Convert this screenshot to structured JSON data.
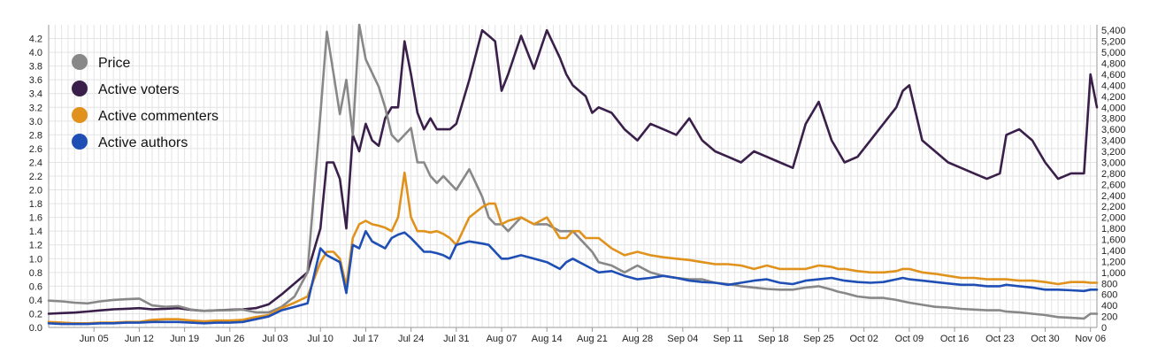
{
  "chart_data": {
    "type": "line",
    "title": "",
    "grid": true,
    "legend_position": "top-left",
    "x_dates": [
      "May 29",
      "May 31",
      "Jun 02",
      "Jun 04",
      "Jun 06",
      "Jun 08",
      "Jun 10",
      "Jun 12",
      "Jun 14",
      "Jun 16",
      "Jun 18",
      "Jun 20",
      "Jun 22",
      "Jun 24",
      "Jun 26",
      "Jun 28",
      "Jun 30",
      "Jul 02",
      "Jul 04",
      "Jul 06",
      "Jul 08",
      "Jul 10",
      "Jul 11",
      "Jul 12",
      "Jul 13",
      "Jul 14",
      "Jul 15",
      "Jul 16",
      "Jul 17",
      "Jul 18",
      "Jul 19",
      "Jul 20",
      "Jul 21",
      "Jul 22",
      "Jul 23",
      "Jul 24",
      "Jul 25",
      "Jul 26",
      "Jul 27",
      "Jul 28",
      "Jul 29",
      "Jul 30",
      "Jul 31",
      "Aug 02",
      "Aug 04",
      "Aug 05",
      "Aug 06",
      "Aug 07",
      "Aug 08",
      "Aug 10",
      "Aug 12",
      "Aug 14",
      "Aug 16",
      "Aug 17",
      "Aug 18",
      "Aug 19",
      "Aug 20",
      "Aug 21",
      "Aug 22",
      "Aug 24",
      "Aug 26",
      "Aug 28",
      "Aug 30",
      "Sep 01",
      "Sep 03",
      "Sep 05",
      "Sep 07",
      "Sep 09",
      "Sep 11",
      "Sep 13",
      "Sep 15",
      "Sep 17",
      "Sep 19",
      "Sep 21",
      "Sep 23",
      "Sep 25",
      "Sep 27",
      "Sep 28",
      "Sep 29",
      "Oct 01",
      "Oct 03",
      "Oct 05",
      "Oct 07",
      "Oct 08",
      "Oct 09",
      "Oct 11",
      "Oct 13",
      "Oct 15",
      "Oct 17",
      "Oct 19",
      "Oct 21",
      "Oct 23",
      "Oct 24",
      "Oct 26",
      "Oct 28",
      "Oct 30",
      "Nov 01",
      "Nov 03",
      "Nov 05",
      "Nov 06",
      "Nov 07"
    ],
    "x_ticks": [
      "Jun 05",
      "Jun 12",
      "Jun 19",
      "Jun 26",
      "Jul 03",
      "Jul 10",
      "Jul 17",
      "Jul 24",
      "Jul 31",
      "Aug 07",
      "Aug 14",
      "Aug 21",
      "Aug 28",
      "Sep 04",
      "Sep 11",
      "Sep 18",
      "Sep 25",
      "Oct 02",
      "Oct 09",
      "Oct 16",
      "Oct 23",
      "Oct 30",
      "Nov 06"
    ],
    "y_left": {
      "min": 0,
      "max": 4.4,
      "ticks": [
        "0.0",
        "0.2",
        "0.4",
        "0.6",
        "0.8",
        "1.0",
        "1.2",
        "1.4",
        "1.6",
        "1.8",
        "2.0",
        "2.2",
        "2.4",
        "2.6",
        "2.8",
        "3.0",
        "3.2",
        "3.4",
        "3.6",
        "3.8",
        "4.0",
        "4.2"
      ]
    },
    "y_right": {
      "min": 0,
      "max": 5500,
      "ticks": [
        "0",
        "200",
        "400",
        "600",
        "800",
        "1,000",
        "1,200",
        "1,400",
        "1,600",
        "1,800",
        "2,000",
        "2,200",
        "2,400",
        "2,600",
        "2,800",
        "3,000",
        "3,200",
        "3,400",
        "3,600",
        "3,800",
        "4,000",
        "4,200",
        "4,400",
        "4,600",
        "4,800",
        "5,000",
        "5,200",
        "5,400"
      ]
    },
    "series": [
      {
        "name": "Price",
        "axis": "left",
        "color": "#888888",
        "values": [
          0.39,
          0.38,
          0.36,
          0.35,
          0.38,
          0.4,
          0.41,
          0.42,
          0.32,
          0.3,
          0.31,
          0.26,
          0.24,
          0.25,
          0.25,
          0.26,
          0.22,
          0.22,
          0.3,
          0.45,
          0.8,
          3.1,
          4.3,
          3.7,
          3.1,
          3.6,
          2.8,
          4.4,
          3.9,
          3.7,
          3.5,
          3.2,
          2.8,
          2.7,
          2.8,
          2.9,
          2.4,
          2.4,
          2.2,
          2.1,
          2.2,
          2.1,
          2.0,
          2.3,
          1.9,
          1.6,
          1.5,
          1.5,
          1.4,
          1.6,
          1.5,
          1.5,
          1.4,
          1.4,
          1.4,
          1.3,
          1.2,
          1.1,
          0.95,
          0.9,
          0.8,
          0.9,
          0.8,
          0.75,
          0.72,
          0.7,
          0.7,
          0.65,
          0.63,
          0.6,
          0.58,
          0.56,
          0.55,
          0.55,
          0.58,
          0.6,
          0.55,
          0.52,
          0.5,
          0.45,
          0.43,
          0.43,
          0.4,
          0.38,
          0.36,
          0.33,
          0.3,
          0.29,
          0.27,
          0.26,
          0.25,
          0.25,
          0.23,
          0.22,
          0.2,
          0.18,
          0.15,
          0.14,
          0.13,
          0.2,
          0.2
        ]
      },
      {
        "name": "Active voters",
        "axis": "right",
        "color": "#3a1f4a",
        "values": [
          250,
          260,
          270,
          290,
          310,
          330,
          340,
          350,
          330,
          340,
          350,
          320,
          300,
          310,
          320,
          330,
          350,
          420,
          600,
          800,
          1000,
          1800,
          3000,
          3000,
          2700,
          1800,
          3500,
          3200,
          3700,
          3400,
          3300,
          3800,
          4000,
          4000,
          5200,
          4600,
          3900,
          3600,
          3800,
          3600,
          3600,
          3600,
          3700,
          4500,
          5400,
          5300,
          5200,
          4300,
          4600,
          5300,
          4700,
          5400,
          4900,
          4600,
          4400,
          4300,
          4200,
          3900,
          4000,
          3900,
          3600,
          3400,
          3700,
          3600,
          3500,
          3800,
          3400,
          3200,
          3100,
          3000,
          3200,
          3100,
          3000,
          2900,
          3700,
          4100,
          3400,
          3200,
          3000,
          3100,
          3400,
          3700,
          4000,
          4300,
          4400,
          3400,
          3200,
          3000,
          2900,
          2800,
          2700,
          2800,
          3500,
          3600,
          3400,
          3000,
          2700,
          2800,
          2800,
          4600,
          4000
        ]
      },
      {
        "name": "Active commenters",
        "axis": "left",
        "color": "#e0921c",
        "values": [
          0.08,
          0.07,
          0.06,
          0.06,
          0.07,
          0.07,
          0.08,
          0.08,
          0.11,
          0.12,
          0.12,
          0.1,
          0.09,
          0.1,
          0.1,
          0.11,
          0.15,
          0.18,
          0.28,
          0.36,
          0.45,
          0.95,
          1.1,
          1.1,
          1.0,
          0.6,
          1.3,
          1.5,
          1.55,
          1.5,
          1.48,
          1.45,
          1.4,
          1.6,
          2.25,
          1.6,
          1.4,
          1.4,
          1.38,
          1.4,
          1.36,
          1.3,
          1.2,
          1.6,
          1.75,
          1.8,
          1.8,
          1.5,
          1.55,
          1.6,
          1.5,
          1.6,
          1.3,
          1.3,
          1.4,
          1.4,
          1.3,
          1.3,
          1.3,
          1.15,
          1.05,
          1.1,
          1.05,
          1.02,
          1.0,
          0.98,
          0.95,
          0.92,
          0.92,
          0.9,
          0.85,
          0.9,
          0.85,
          0.85,
          0.85,
          0.9,
          0.88,
          0.85,
          0.85,
          0.82,
          0.8,
          0.8,
          0.82,
          0.85,
          0.85,
          0.8,
          0.78,
          0.75,
          0.72,
          0.72,
          0.7,
          0.7,
          0.7,
          0.68,
          0.68,
          0.66,
          0.63,
          0.66,
          0.66,
          0.65,
          0.65
        ]
      },
      {
        "name": "Active authors",
        "axis": "left",
        "color": "#1f4fb5",
        "values": [
          0.06,
          0.05,
          0.05,
          0.05,
          0.06,
          0.06,
          0.07,
          0.07,
          0.08,
          0.08,
          0.08,
          0.07,
          0.06,
          0.07,
          0.07,
          0.08,
          0.12,
          0.16,
          0.25,
          0.3,
          0.35,
          1.15,
          1.05,
          1.0,
          0.95,
          0.5,
          1.2,
          1.15,
          1.4,
          1.25,
          1.2,
          1.15,
          1.3,
          1.35,
          1.38,
          1.3,
          1.2,
          1.1,
          1.1,
          1.08,
          1.05,
          1.0,
          1.2,
          1.25,
          1.22,
          1.2,
          1.1,
          1.0,
          1.0,
          1.05,
          1.0,
          0.95,
          0.85,
          0.95,
          1.0,
          0.95,
          0.9,
          0.85,
          0.8,
          0.82,
          0.75,
          0.7,
          0.72,
          0.75,
          0.72,
          0.68,
          0.66,
          0.65,
          0.62,
          0.65,
          0.68,
          0.7,
          0.65,
          0.63,
          0.68,
          0.7,
          0.72,
          0.7,
          0.68,
          0.66,
          0.65,
          0.66,
          0.7,
          0.72,
          0.7,
          0.68,
          0.66,
          0.64,
          0.62,
          0.62,
          0.6,
          0.6,
          0.62,
          0.6,
          0.58,
          0.55,
          0.55,
          0.54,
          0.53,
          0.55,
          0.55
        ]
      }
    ]
  }
}
